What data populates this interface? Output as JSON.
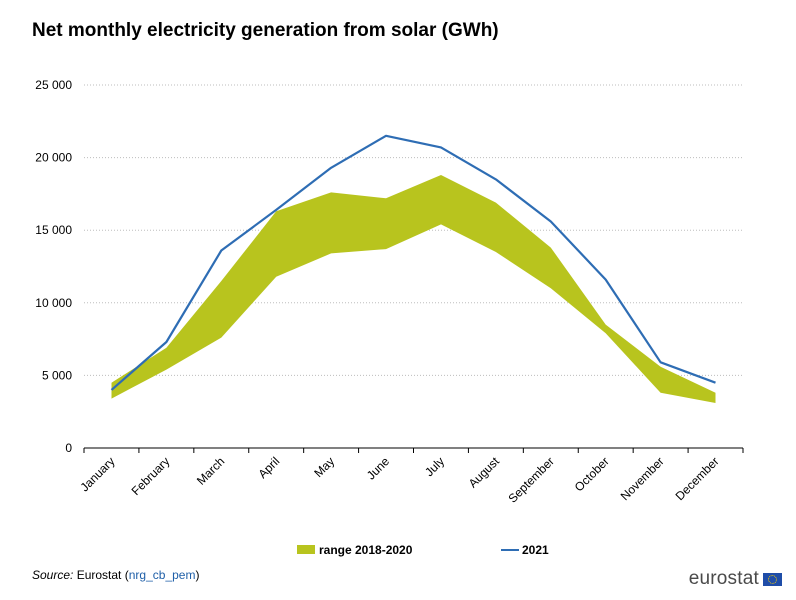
{
  "chart_data": {
    "type": "area",
    "title": "Net monthly electricity generation from solar (GWh)",
    "xlabel": "",
    "ylabel": "",
    "ylim": [
      0,
      25000
    ],
    "yticks": [
      0,
      5000,
      10000,
      15000,
      20000,
      25000
    ],
    "ytick_labels": [
      "0",
      "5 000",
      "10 000",
      "15 000",
      "20 000",
      "25 000"
    ],
    "categories": [
      "January",
      "February",
      "March",
      "April",
      "May",
      "June",
      "July",
      "August",
      "September",
      "October",
      "November",
      "December"
    ],
    "series": [
      {
        "name": "range 2018-2020",
        "kind": "range",
        "color": "#b8c41e",
        "low": [
          3400,
          5400,
          7600,
          11800,
          13400,
          13700,
          15400,
          13500,
          11000,
          7900,
          3800,
          3100
        ],
        "high": [
          4500,
          6900,
          11500,
          16300,
          17600,
          17200,
          18800,
          16900,
          13800,
          8500,
          5600,
          3800
        ]
      },
      {
        "name": "2021",
        "kind": "line",
        "color": "#2e6db4",
        "values": [
          4000,
          7300,
          13600,
          16400,
          19300,
          21500,
          20700,
          18500,
          15600,
          11600,
          5900,
          4500
        ]
      }
    ],
    "legend_position": "bottom",
    "grid": "horizontal-dotted"
  },
  "source": {
    "label": "Source:",
    "publisher": "Eurostat",
    "code": "nrg_cb_pem"
  },
  "logo": {
    "text": "eurostat",
    "icon": "eu-flag-icon"
  }
}
